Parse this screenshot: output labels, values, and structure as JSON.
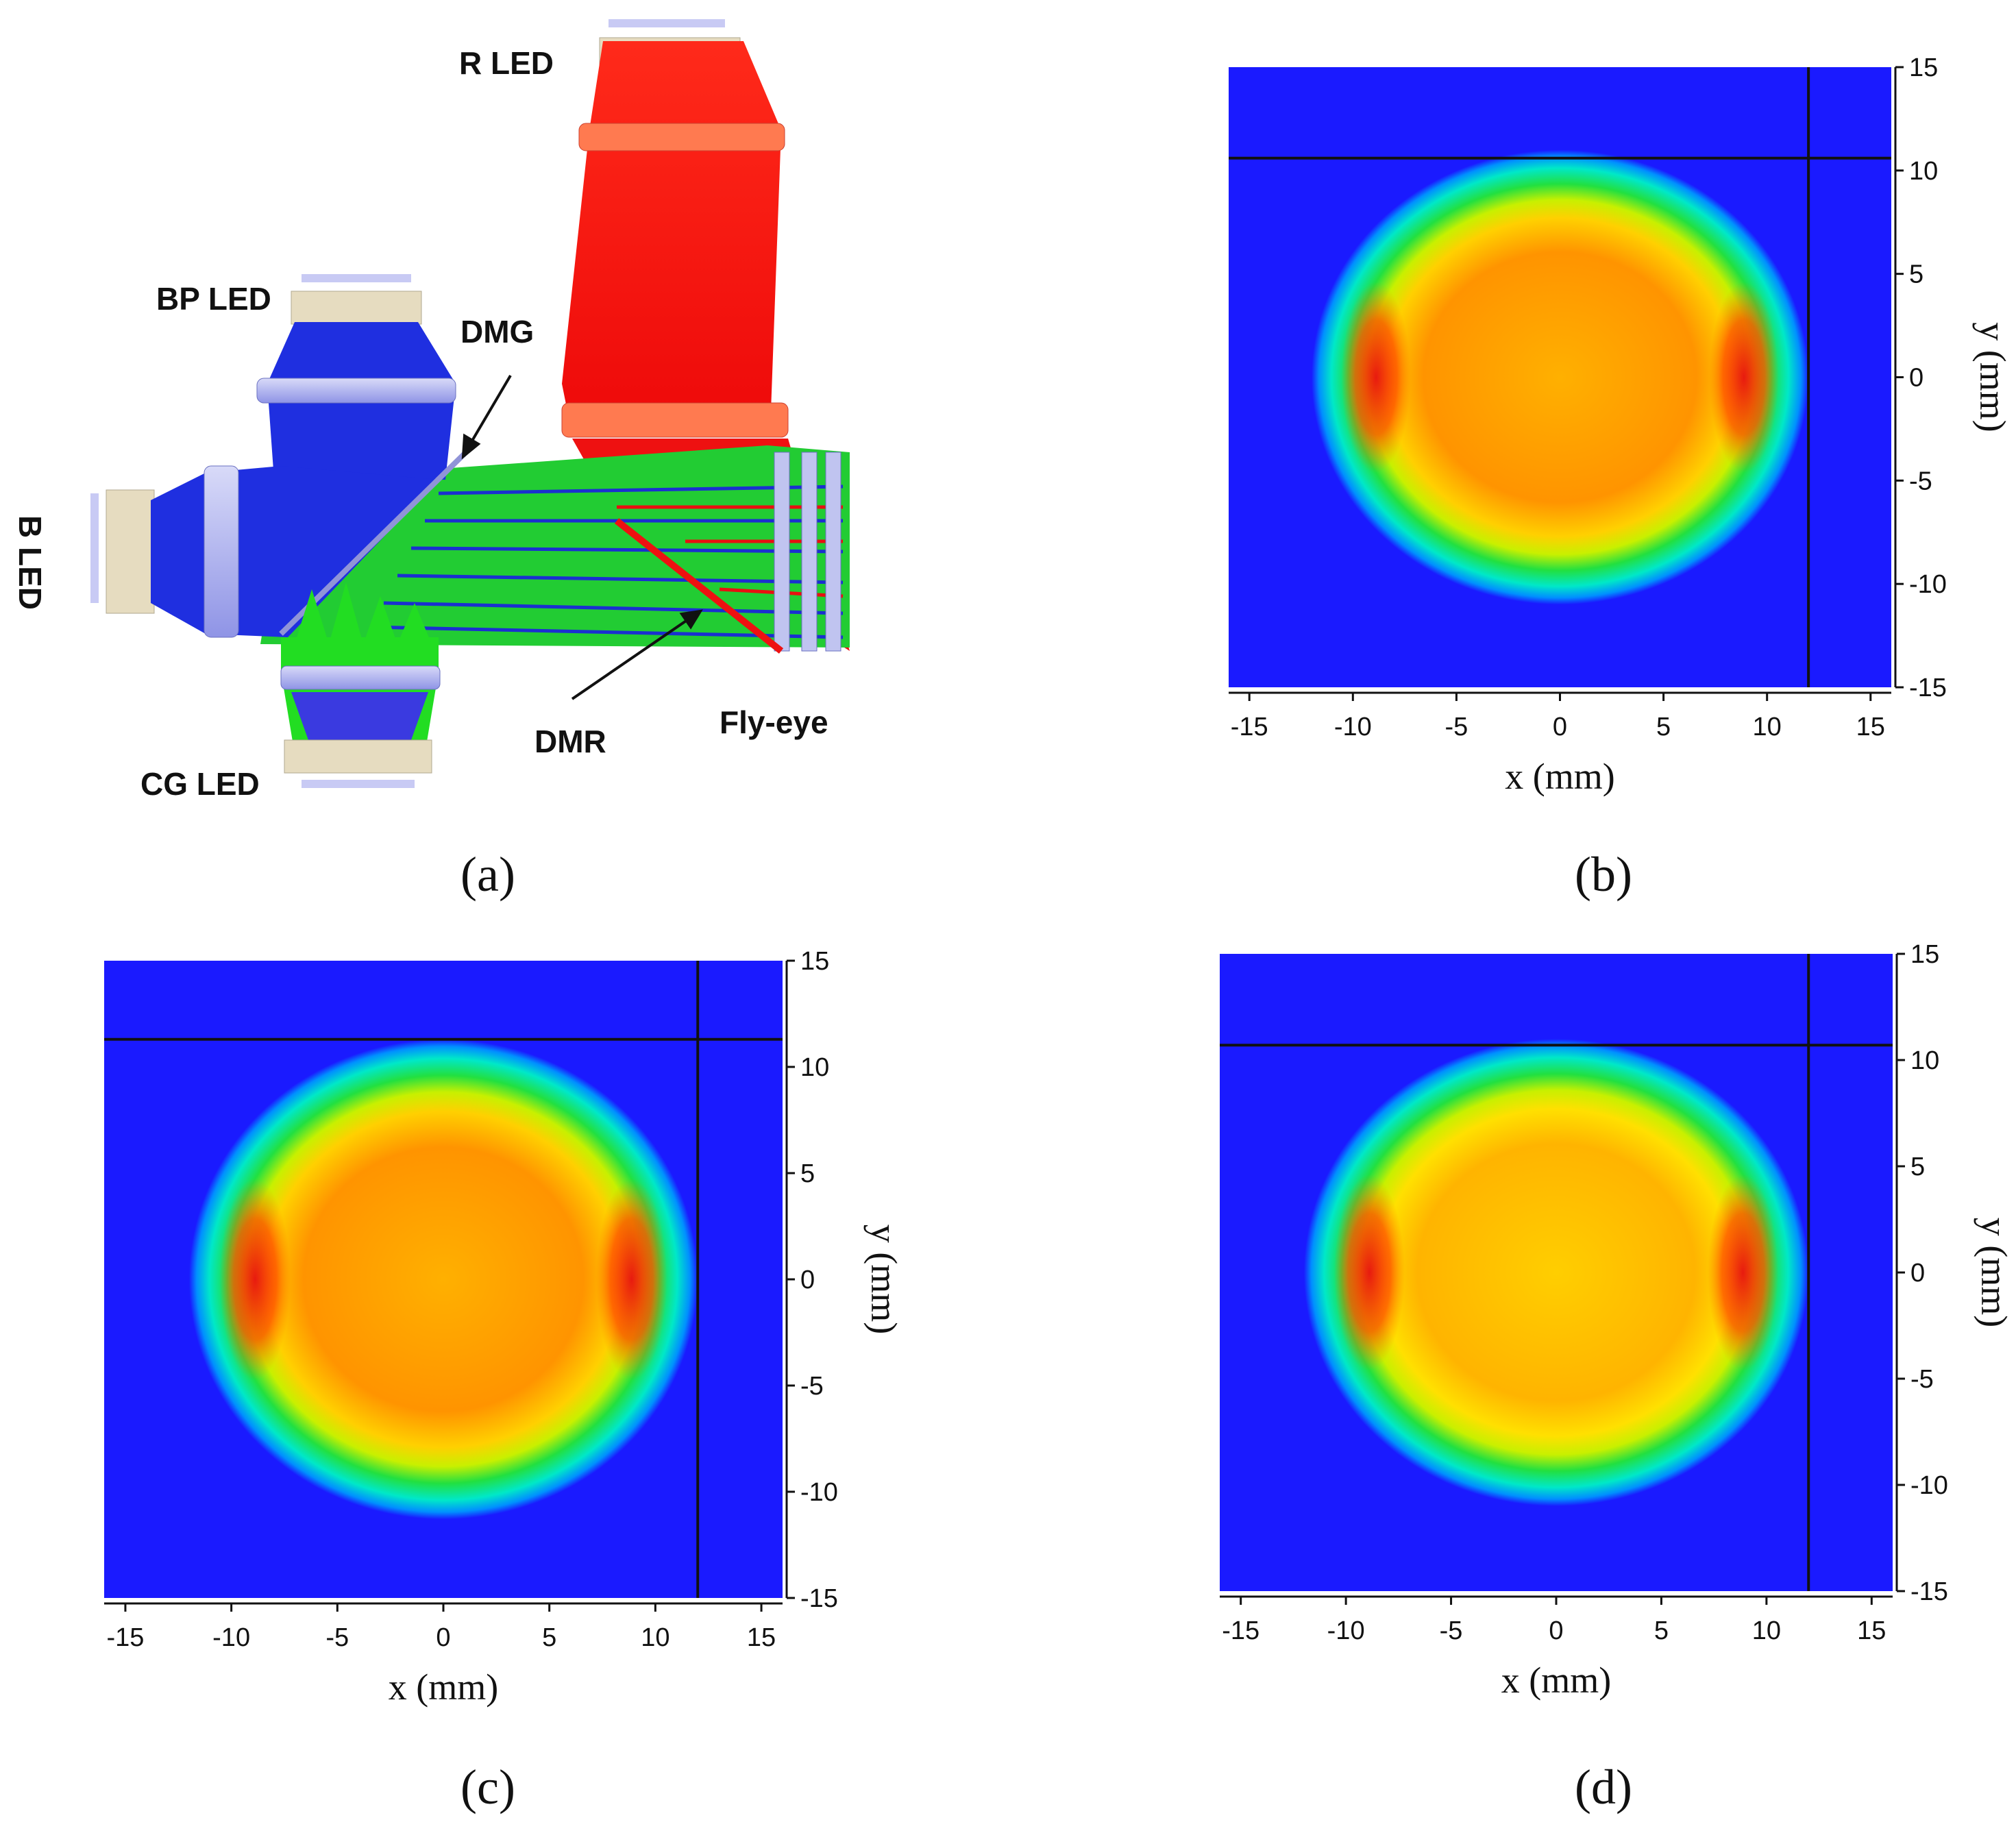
{
  "panels": {
    "a": {
      "caption": "(a)",
      "labels": {
        "r_led": "R LED",
        "bp_led": "BP LED",
        "b_led": "B LED",
        "cg_led": "CG LED",
        "dmg": "DMG",
        "dmr": "DMR",
        "fly_eye": "Fly-eye"
      },
      "colors": {
        "red_beam": "#ff1a1a",
        "blue_beam": "#1f2fe0",
        "green_beam": "#22dd22",
        "lens": "#b0b4f0",
        "mount": "#e6dcc0"
      }
    },
    "b": {
      "caption": "(b)"
    },
    "c": {
      "caption": "(c)"
    },
    "d": {
      "caption": "(d)"
    }
  },
  "chart_data": [
    {
      "panel": "b",
      "type": "heatmap",
      "xlabel": "x (mm)",
      "ylabel": "y (mm)",
      "xlim": [
        -16,
        16
      ],
      "ylim": [
        -15,
        15
      ],
      "xticks": [
        "-15",
        "-10",
        "-5",
        "0",
        "5",
        "10",
        "15"
      ],
      "yticks": [
        "15",
        "10",
        "5",
        "0",
        "-5",
        "-10",
        "-15"
      ],
      "crosshair": {
        "x": 12,
        "y": 10.6
      },
      "spot": {
        "x_range": [
          -12,
          12
        ],
        "y_range": [
          -11,
          11
        ],
        "hot_edges": true
      },
      "colormap": [
        "#1a1aff",
        "#00b0ff",
        "#00ffd0",
        "#22e040",
        "#c8f000",
        "#ffd800",
        "#ff9a00",
        "#ff5a00",
        "#ee1111"
      ]
    },
    {
      "panel": "c",
      "type": "heatmap",
      "xlabel": "x (mm)",
      "ylabel": "y (mm)",
      "xlim": [
        -16,
        16
      ],
      "ylim": [
        -15,
        15
      ],
      "xticks": [
        "-15",
        "-10",
        "-5",
        "0",
        "5",
        "10",
        "15"
      ],
      "yticks": [
        "15",
        "10",
        "5",
        "0",
        "-5",
        "-10",
        "-15"
      ],
      "crosshair": {
        "x": 12,
        "y": 11.3
      },
      "spot": {
        "x_range": [
          -12,
          12
        ],
        "y_range": [
          -11.3,
          11.3
        ],
        "hot_edges": true
      },
      "colormap": [
        "#1a1aff",
        "#00b0ff",
        "#00ffd0",
        "#22e040",
        "#c8f000",
        "#ffd800",
        "#ff9a00",
        "#ff5a00",
        "#ee1111"
      ]
    },
    {
      "panel": "d",
      "type": "heatmap",
      "xlabel": "x (mm)",
      "ylabel": "y (mm)",
      "xlim": [
        -16,
        16
      ],
      "ylim": [
        -15,
        15
      ],
      "xticks": [
        "-15",
        "-10",
        "-5",
        "0",
        "5",
        "10",
        "15"
      ],
      "yticks": [
        "15",
        "10",
        "5",
        "0",
        "-5",
        "-10",
        "-15"
      ],
      "crosshair": {
        "x": 12,
        "y": 10.7
      },
      "spot": {
        "x_range": [
          -12,
          12
        ],
        "y_range": [
          -11,
          11
        ],
        "hot_edges": true
      },
      "colormap": [
        "#1a1aff",
        "#00b0ff",
        "#00ffd0",
        "#22e040",
        "#c8f000",
        "#ffd800",
        "#ff9a00",
        "#ff5a00",
        "#ee1111"
      ]
    }
  ]
}
